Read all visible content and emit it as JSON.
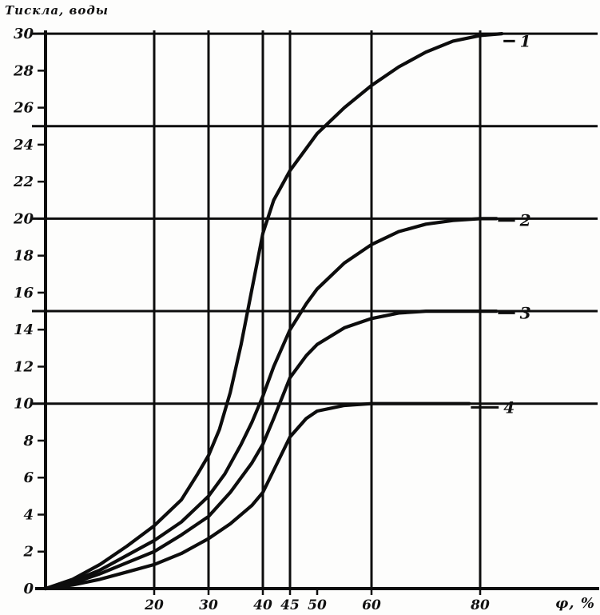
{
  "chart_data": {
    "type": "line",
    "y_axis_label": "Тискла, воды",
    "x_axis_label": "φ, %",
    "x_ticks": [
      {
        "v": 20,
        "label": "20"
      },
      {
        "v": 30,
        "label": "30"
      },
      {
        "v": 40,
        "label": "40"
      },
      {
        "v": 45,
        "label": "45"
      },
      {
        "v": 50,
        "label": "50"
      },
      {
        "v": 60,
        "label": "60"
      },
      {
        "v": 80,
        "label": "80"
      }
    ],
    "y_ticks": [
      {
        "v": 0,
        "label": "0"
      },
      {
        "v": 2,
        "label": "2"
      },
      {
        "v": 4,
        "label": "4"
      },
      {
        "v": 6,
        "label": "6"
      },
      {
        "v": 8,
        "label": "8"
      },
      {
        "v": 10,
        "label": "10"
      },
      {
        "v": 12,
        "label": "12"
      },
      {
        "v": 14,
        "label": "14"
      },
      {
        "v": 16,
        "label": "16"
      },
      {
        "v": 18,
        "label": "18"
      },
      {
        "v": 20,
        "label": "20"
      },
      {
        "v": 22,
        "label": "22"
      },
      {
        "v": 24,
        "label": "24"
      },
      {
        "v": 26,
        "label": "26"
      },
      {
        "v": 28,
        "label": "28"
      },
      {
        "v": 30,
        "label": "30"
      }
    ],
    "vertical_gridlines": [
      20,
      30,
      40,
      45,
      60,
      80
    ],
    "horizontal_gridlines": [
      10,
      15,
      20,
      25,
      30
    ],
    "x_range": [
      0,
      95
    ],
    "y_range": [
      0,
      30
    ],
    "grid": true,
    "line_color": "#0d0d0d",
    "series": [
      {
        "name": "1",
        "label_at": [
          87,
          29.6
        ],
        "points": [
          [
            0,
            0
          ],
          [
            5,
            0.5
          ],
          [
            10,
            1.3
          ],
          [
            15,
            2.3
          ],
          [
            20,
            3.4
          ],
          [
            25,
            4.8
          ],
          [
            28,
            6.2
          ],
          [
            30,
            7.2
          ],
          [
            32,
            8.6
          ],
          [
            34,
            10.6
          ],
          [
            36,
            13.2
          ],
          [
            38,
            16.2
          ],
          [
            40,
            19.2
          ],
          [
            42,
            21.0
          ],
          [
            45,
            22.6
          ],
          [
            50,
            24.6
          ],
          [
            55,
            26.0
          ],
          [
            60,
            27.2
          ],
          [
            65,
            28.2
          ],
          [
            70,
            29.0
          ],
          [
            75,
            29.6
          ],
          [
            80,
            29.9
          ],
          [
            84,
            30.0
          ]
        ]
      },
      {
        "name": "2",
        "label_at": [
          87,
          19.9
        ],
        "points": [
          [
            0,
            0
          ],
          [
            5,
            0.4
          ],
          [
            10,
            1.0
          ],
          [
            15,
            1.8
          ],
          [
            20,
            2.6
          ],
          [
            25,
            3.6
          ],
          [
            30,
            5.0
          ],
          [
            33,
            6.2
          ],
          [
            36,
            7.8
          ],
          [
            38,
            9.0
          ],
          [
            40,
            10.4
          ],
          [
            42,
            12.0
          ],
          [
            45,
            14.0
          ],
          [
            48,
            15.4
          ],
          [
            50,
            16.2
          ],
          [
            55,
            17.6
          ],
          [
            60,
            18.6
          ],
          [
            65,
            19.3
          ],
          [
            70,
            19.7
          ],
          [
            75,
            19.9
          ],
          [
            80,
            20.0
          ],
          [
            83,
            20.0
          ]
        ]
      },
      {
        "name": "3",
        "label_at": [
          87,
          14.9
        ],
        "points": [
          [
            0,
            0
          ],
          [
            5,
            0.3
          ],
          [
            10,
            0.8
          ],
          [
            15,
            1.4
          ],
          [
            20,
            2.0
          ],
          [
            25,
            2.9
          ],
          [
            30,
            3.9
          ],
          [
            34,
            5.2
          ],
          [
            38,
            6.8
          ],
          [
            40,
            7.8
          ],
          [
            42,
            9.2
          ],
          [
            45,
            11.4
          ],
          [
            48,
            12.6
          ],
          [
            50,
            13.2
          ],
          [
            55,
            14.1
          ],
          [
            60,
            14.6
          ],
          [
            65,
            14.9
          ],
          [
            70,
            15.0
          ],
          [
            80,
            15.0
          ],
          [
            83,
            15.0
          ]
        ]
      },
      {
        "name": "4",
        "label_at": [
          84,
          9.8
        ],
        "points": [
          [
            0,
            0
          ],
          [
            5,
            0.2
          ],
          [
            10,
            0.5
          ],
          [
            15,
            0.9
          ],
          [
            20,
            1.3
          ],
          [
            25,
            1.9
          ],
          [
            30,
            2.7
          ],
          [
            34,
            3.5
          ],
          [
            38,
            4.5
          ],
          [
            40,
            5.2
          ],
          [
            42,
            6.4
          ],
          [
            45,
            8.2
          ],
          [
            48,
            9.2
          ],
          [
            50,
            9.6
          ],
          [
            55,
            9.9
          ],
          [
            60,
            10.0
          ],
          [
            70,
            10.0
          ],
          [
            78,
            10.0
          ]
        ]
      }
    ]
  }
}
